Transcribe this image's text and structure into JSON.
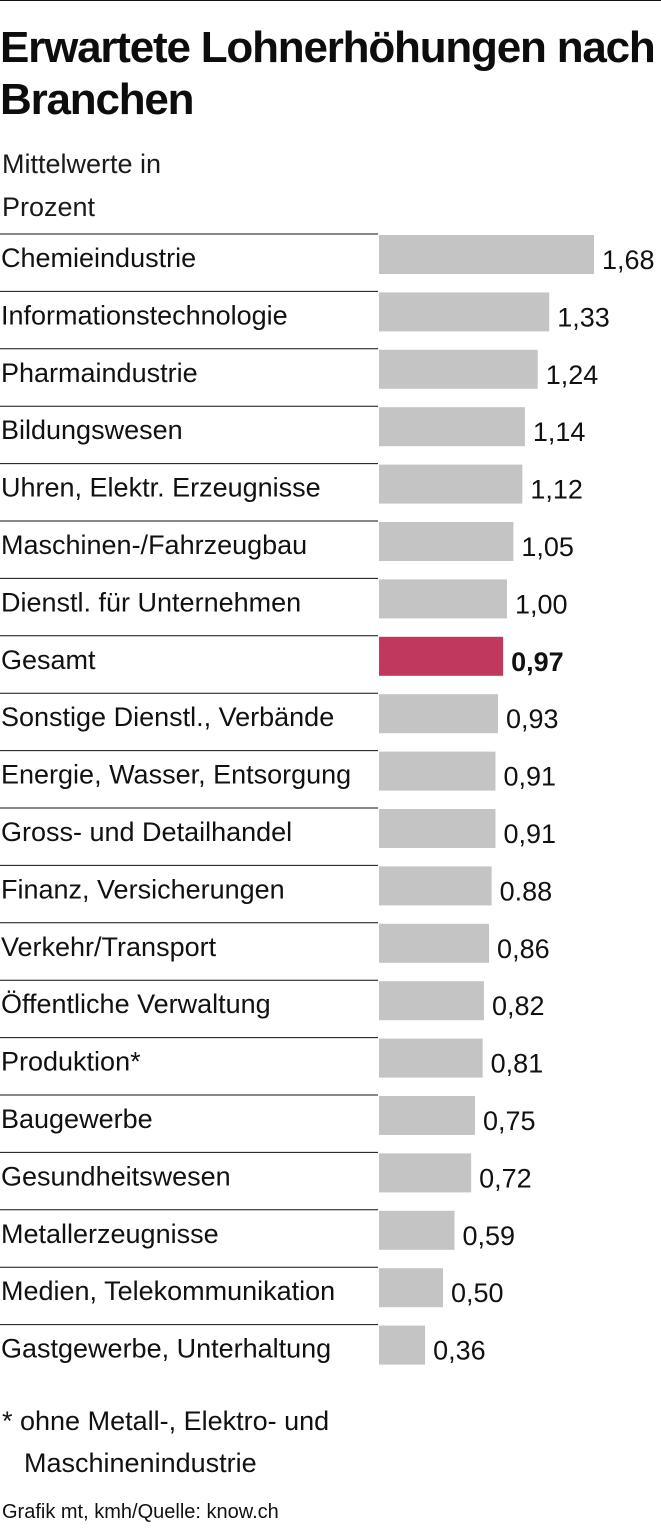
{
  "title": "Erwartete Lohnerhöhungen nach Branchen",
  "subtitle": "Mittelwerte in Prozent",
  "colors": {
    "bar": "#c4c4c5",
    "highlight": "#c0395c",
    "rule": "#111111"
  },
  "chart_data": {
    "type": "bar",
    "orientation": "horizontal",
    "title": "Erwartete Lohnerhöhungen nach Branchen",
    "subtitle": "Mittelwerte in Prozent",
    "categories": [
      "Chemieindustrie",
      "Informationstechnologie",
      "Pharmaindustrie",
      "Bildungswesen",
      "Uhren, Elektr. Erzeugnisse",
      "Maschinen-/Fahrzeugbau",
      "Dienstl. für Unternehmen",
      "Gesamt",
      "Sonstige Dienstl., Verbände",
      "Energie, Wasser, Entsorgung",
      "Gross- und Detailhandel",
      "Finanz, Versicherungen",
      "Verkehr/Transport",
      "Öffentliche Verwaltung",
      "Produktion*",
      "Baugewerbe",
      "Gesundheitswesen",
      "Metallerzeugnisse",
      "Medien, Telekommunikation",
      "Gastgewerbe, Unterhaltung"
    ],
    "values": [
      1.68,
      1.33,
      1.24,
      1.14,
      1.12,
      1.05,
      1.0,
      0.97,
      0.93,
      0.91,
      0.91,
      0.88,
      0.86,
      0.82,
      0.81,
      0.75,
      0.72,
      0.59,
      0.5,
      0.36
    ],
    "value_labels": [
      "1,68",
      "1,33",
      "1,24",
      "1,14",
      "1,12",
      "1,05",
      "1,00",
      "0,97",
      "0,93",
      "0,91",
      "0,91",
      "0.88",
      "0,86",
      "0,82",
      "0,81",
      "0,75",
      "0,72",
      "0,59",
      "0,50",
      "0,36"
    ],
    "highlight": "Gesamt",
    "xlim": [
      0,
      1.68
    ],
    "grid": false,
    "legend": "none"
  },
  "footnote": {
    "line1": "* ohne Metall-, Elektro- und",
    "line2": "Maschinenindustrie"
  },
  "source": "Grafik mt, kmh/Quelle: know.ch"
}
